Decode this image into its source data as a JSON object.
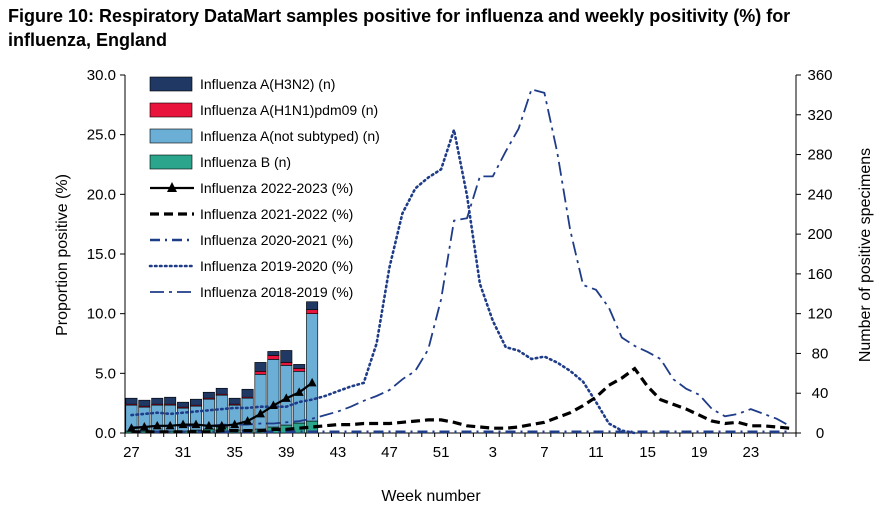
{
  "title": "Figure 10: Respiratory DataMart samples positive for influenza and weekly positivity (%) for influenza, England",
  "chart_data": {
    "type": "bar",
    "title": "Figure 10: Respiratory DataMart samples positive for influenza and weekly positivity (%) for influenza, England",
    "xlabel": "Week number",
    "ylabel_left": "Proportion positive (%)",
    "ylabel_right": "Number of positive specimens",
    "ylim_left": [
      0,
      30
    ],
    "ylim_right": [
      0,
      360
    ],
    "yticks_left": [
      "0.0",
      "5.0",
      "10.0",
      "15.0",
      "20.0",
      "25.0",
      "30.0"
    ],
    "yticks_right": [
      "0",
      "40",
      "80",
      "120",
      "160",
      "200",
      "240",
      "280",
      "320",
      "360"
    ],
    "x_weeks": [
      27,
      28,
      29,
      30,
      31,
      32,
      33,
      34,
      35,
      36,
      37,
      38,
      39,
      40,
      41,
      42,
      43,
      44,
      45,
      46,
      47,
      48,
      49,
      50,
      51,
      52,
      1,
      2,
      3,
      4,
      5,
      6,
      7,
      8,
      9,
      10,
      11,
      12,
      13,
      14,
      15,
      16,
      17,
      18,
      19,
      20,
      21,
      22,
      23,
      24,
      25,
      26
    ],
    "x_tick_labels": [
      "27",
      "31",
      "35",
      "39",
      "43",
      "47",
      "51",
      "3",
      "7",
      "11",
      "15",
      "19",
      "23"
    ],
    "legend": [
      {
        "name": "Influenza A(H3N2) (n)",
        "color": "#1f3864",
        "kind": "bar"
      },
      {
        "name": "Influenza A(H1N1)pdm09 (n)",
        "color": "#e8143c",
        "kind": "bar"
      },
      {
        "name": "Influenza A(not subtyped) (n)",
        "color": "#6baed6",
        "kind": "bar"
      },
      {
        "name": "Influenza B (n)",
        "color": "#2ca58d",
        "kind": "bar"
      },
      {
        "name": "Influenza 2022-2023 (%)",
        "color": "#000000",
        "kind": "line-triangle"
      },
      {
        "name": "Influenza 2021-2022 (%)",
        "color": "#000000",
        "kind": "dashed"
      },
      {
        "name": "Influenza 2020-2021 (%)",
        "color": "#1f3c88",
        "kind": "dashdot"
      },
      {
        "name": "Influenza 2019-2020 (%)",
        "color": "#1f3c88",
        "kind": "dotted"
      },
      {
        "name": "Influenza 2018-2019 (%)",
        "color": "#1f3c88",
        "kind": "longdashdot"
      }
    ],
    "bars": {
      "weeks": [
        27,
        28,
        29,
        30,
        31,
        32,
        33,
        34,
        35,
        36,
        37,
        38,
        39,
        40,
        41
      ],
      "series": [
        {
          "name": "Influenza B (n)",
          "values": [
            2,
            2,
            2,
            2,
            2,
            3,
            4,
            6,
            3,
            3,
            4,
            6,
            8,
            10,
            12
          ]
        },
        {
          "name": "Influenza A(not subtyped) (n)",
          "values": [
            26,
            24,
            26,
            26,
            23,
            24,
            30,
            32,
            25,
            32,
            55,
            68,
            60,
            52,
            108
          ]
        },
        {
          "name": "Influenza A(H1N1)pdm09 (n)",
          "values": [
            1,
            1,
            1,
            1,
            1,
            1,
            1,
            1,
            1,
            1,
            3,
            4,
            3,
            3,
            4
          ]
        },
        {
          "name": "Influenza A(H3N2) (n)",
          "values": [
            6,
            6,
            6,
            7,
            5,
            6,
            6,
            6,
            6,
            8,
            9,
            4,
            12,
            4,
            8
          ]
        }
      ]
    },
    "lines": [
      {
        "name": "Influenza 2022-2023 (%)",
        "weeks": [
          27,
          28,
          29,
          30,
          31,
          32,
          33,
          34,
          35,
          36,
          37,
          38,
          39,
          40,
          41
        ],
        "values": [
          0.4,
          0.5,
          0.6,
          0.6,
          0.7,
          0.7,
          0.6,
          0.6,
          0.7,
          1.0,
          1.6,
          2.3,
          2.9,
          3.4,
          4.2
        ]
      },
      {
        "name": "Influenza 2021-2022 (%)",
        "weeks": [
          27,
          28,
          29,
          30,
          31,
          32,
          33,
          34,
          35,
          36,
          37,
          38,
          39,
          40,
          41,
          42,
          43,
          44,
          45,
          46,
          47,
          48,
          49,
          50,
          51,
          52,
          1,
          2,
          3,
          4,
          5,
          6,
          7,
          8,
          9,
          10,
          11,
          12,
          13,
          14,
          15,
          16,
          17,
          18,
          19,
          20,
          21,
          22,
          23,
          24,
          25,
          26
        ],
        "values": [
          0.1,
          0.1,
          0.1,
          0.1,
          0.1,
          0.1,
          0.1,
          0.2,
          0.2,
          0.2,
          0.2,
          0.3,
          0.3,
          0.4,
          0.5,
          0.6,
          0.7,
          0.7,
          0.8,
          0.8,
          0.8,
          0.9,
          1.0,
          1.1,
          1.1,
          0.9,
          0.6,
          0.5,
          0.4,
          0.4,
          0.5,
          0.7,
          0.9,
          1.3,
          1.7,
          2.3,
          3.0,
          4.0,
          4.6,
          5.4,
          3.9,
          2.8,
          2.4,
          2.0,
          1.5,
          1.0,
          0.8,
          0.9,
          0.6,
          0.6,
          0.5,
          0.4
        ]
      },
      {
        "name": "Influenza 2020-2021 (%)",
        "weeks": [
          27,
          28,
          29,
          30,
          31,
          32,
          33,
          34,
          35,
          36,
          37,
          38,
          39,
          40,
          41,
          42,
          43,
          44,
          45,
          46,
          47,
          48,
          49,
          50,
          51,
          52,
          1,
          2,
          3,
          4,
          5,
          6,
          7,
          8,
          9,
          10,
          11,
          12,
          13,
          14,
          15,
          16,
          17,
          18,
          19,
          20,
          21,
          22,
          23,
          24,
          25,
          26
        ],
        "values": [
          0.1,
          0.1,
          0.1,
          0.1,
          0.1,
          0.1,
          0.1,
          0.1,
          0.1,
          0.1,
          0.1,
          0.1,
          0.1,
          0.1,
          0.1,
          0.1,
          0.1,
          0.1,
          0.1,
          0.1,
          0.1,
          0.1,
          0.1,
          0.1,
          0.1,
          0.1,
          0.1,
          0.1,
          0.1,
          0.1,
          0.1,
          0.1,
          0.1,
          0.1,
          0.1,
          0.1,
          0.1,
          0.1,
          0.1,
          0.1,
          0.1,
          0.1,
          0.1,
          0.1,
          0.1,
          0.1,
          0.1,
          0.1,
          0.1,
          0.1,
          0.1,
          0.1
        ]
      },
      {
        "name": "Influenza 2019-2020 (%)",
        "weeks": [
          27,
          28,
          29,
          30,
          31,
          32,
          33,
          34,
          35,
          36,
          37,
          38,
          39,
          40,
          41,
          42,
          43,
          44,
          45,
          46,
          47,
          48,
          49,
          50,
          51,
          52,
          1,
          2,
          3,
          4,
          5,
          6,
          7,
          8,
          9,
          10,
          11,
          12,
          13,
          14
        ],
        "values": [
          1.5,
          1.6,
          1.7,
          1.6,
          1.7,
          1.8,
          1.9,
          2.0,
          2.1,
          2.1,
          2.2,
          2.2,
          2.2,
          2.6,
          2.8,
          3.1,
          3.5,
          3.9,
          4.2,
          7.5,
          13.9,
          18.4,
          20.5,
          21.4,
          22.1,
          25.4,
          19.9,
          12.5,
          9.4,
          7.2,
          6.9,
          6.2,
          6.4,
          5.9,
          5.2,
          4.3,
          2.6,
          0.8,
          0.2,
          0.0
        ]
      },
      {
        "name": "Influenza 2018-2019 (%)",
        "weeks": [
          27,
          28,
          29,
          30,
          31,
          32,
          33,
          34,
          35,
          36,
          37,
          38,
          39,
          40,
          41,
          42,
          43,
          44,
          45,
          46,
          47,
          48,
          49,
          50,
          51,
          52,
          1,
          2,
          3,
          4,
          5,
          6,
          7,
          8,
          9,
          10,
          11,
          12,
          13,
          14,
          15,
          16,
          17,
          18,
          19,
          20,
          21,
          22,
          23,
          24,
          25,
          26
        ],
        "values": [
          0.5,
          0.5,
          0.6,
          0.6,
          0.6,
          0.6,
          0.6,
          0.7,
          0.7,
          0.7,
          0.8,
          0.8,
          0.9,
          1.0,
          1.2,
          1.5,
          1.8,
          2.2,
          2.7,
          3.1,
          3.6,
          4.5,
          5.2,
          7.0,
          11.2,
          17.8,
          18.0,
          21.5,
          21.5,
          23.6,
          25.5,
          28.8,
          28.5,
          23.5,
          17.0,
          12.4,
          12.0,
          10.5,
          8.0,
          7.3,
          6.8,
          6.2,
          4.5,
          3.7,
          3.2,
          2.0,
          1.4,
          1.6,
          2.0,
          1.6,
          1.2,
          0.6
        ]
      }
    ]
  }
}
